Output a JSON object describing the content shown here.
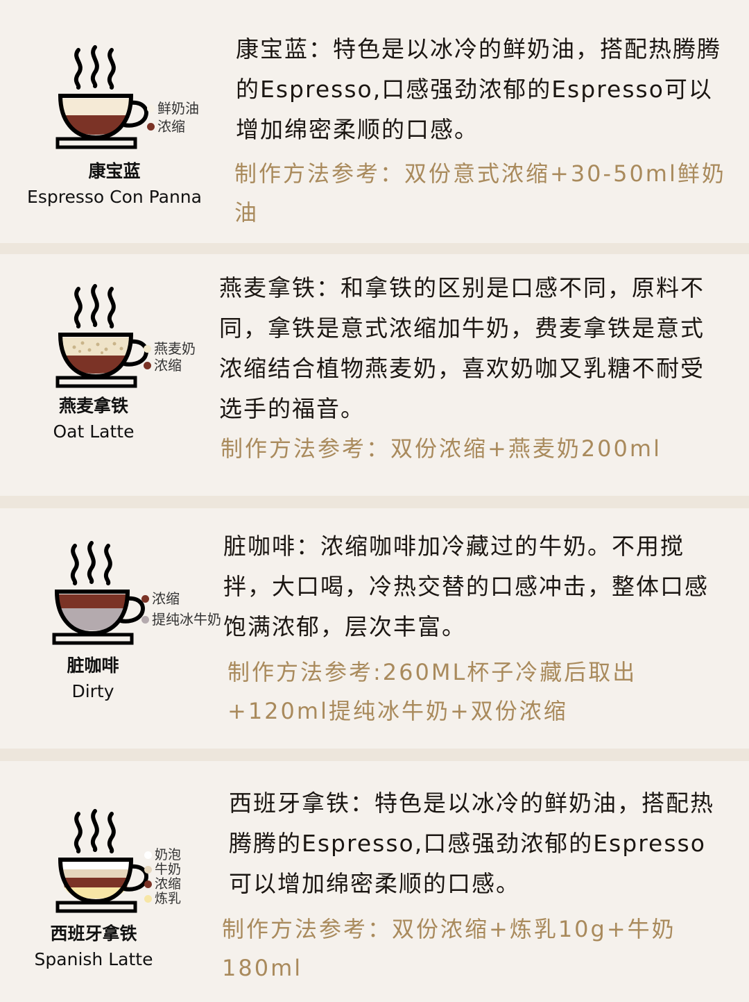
{
  "colors": {
    "page_bg": "#ede6dc",
    "card_bg": "#f5f1ec",
    "method_text": "#a98a5c",
    "espresso": "#7b3326",
    "cream": "#f5ead6",
    "milk_foam": "#ffffff",
    "steamed_milk": "#e6d7bd",
    "condensed_milk": "#f7e6a6",
    "oat_milk": "#efe3c8",
    "refined_cold_milk": "#b4aaae"
  },
  "cards": [
    {
      "cup_icon": "cup-icon",
      "name_zh": "康宝蓝",
      "name_en": "Espresso Con Panna",
      "legend": [
        {
          "label": "鲜奶油",
          "color": "#f8f2e6"
        },
        {
          "label": "浓缩",
          "color": "#7b3326"
        }
      ],
      "desc": "康宝蓝：特色是以冰冷的鲜奶油，搭配热腾腾的Espresso,口感强劲浓郁的Espresso可以增加绵密柔顺的口感。",
      "method": "制作方法参考：双份意式浓缩+30-50ml鲜奶油"
    },
    {
      "cup_icon": "cup-icon",
      "name_zh": "燕麦拿铁",
      "name_en": "Oat Latte",
      "legend": [
        {
          "label": "燕麦奶",
          "color": "#f1e7cc"
        },
        {
          "label": "浓缩",
          "color": "#7b3326"
        }
      ],
      "desc": "燕麦拿铁：和拿铁的区别是口感不同，原料不同，拿铁是意式浓缩加牛奶，费麦拿铁是意式浓缩结合植物燕麦奶，喜欢奶咖又乳糖不耐受选手的福音。",
      "method": "制作方法参考：双份浓缩+燕麦奶200ml"
    },
    {
      "cup_icon": "cup-icon",
      "name_zh": "脏咖啡",
      "name_en": "Dirty",
      "legend": [
        {
          "label": "浓缩",
          "color": "#7b3326"
        },
        {
          "label": "提纯冰牛奶",
          "color": "#b4aaae"
        }
      ],
      "desc": "脏咖啡：浓缩咖啡加冷藏过的牛奶。不用搅拌，大口喝，冷热交替的口感冲击，整体口感饱满浓郁，层次丰富。",
      "method": "制作方法参考:260ML杯子冷藏后取出+120ml提纯冰牛奶+双份浓缩"
    },
    {
      "cup_icon": "cup-icon",
      "name_zh": "西班牙拿铁",
      "name_en": "Spanish Latte",
      "legend": [
        {
          "label": "奶泡",
          "color": "#ffffff"
        },
        {
          "label": "牛奶",
          "color": "#e6d7bd"
        },
        {
          "label": "浓缩",
          "color": "#7b3326"
        },
        {
          "label": "炼乳",
          "color": "#f7e6a6"
        }
      ],
      "desc": "西班牙拿铁：特色是以冰冷的鲜奶油，搭配热腾腾的Espresso,口感强劲浓郁的Espresso可以增加绵密柔顺的口感。",
      "method": "制作方法参考：双份浓缩+炼乳10g+牛奶180ml"
    }
  ]
}
